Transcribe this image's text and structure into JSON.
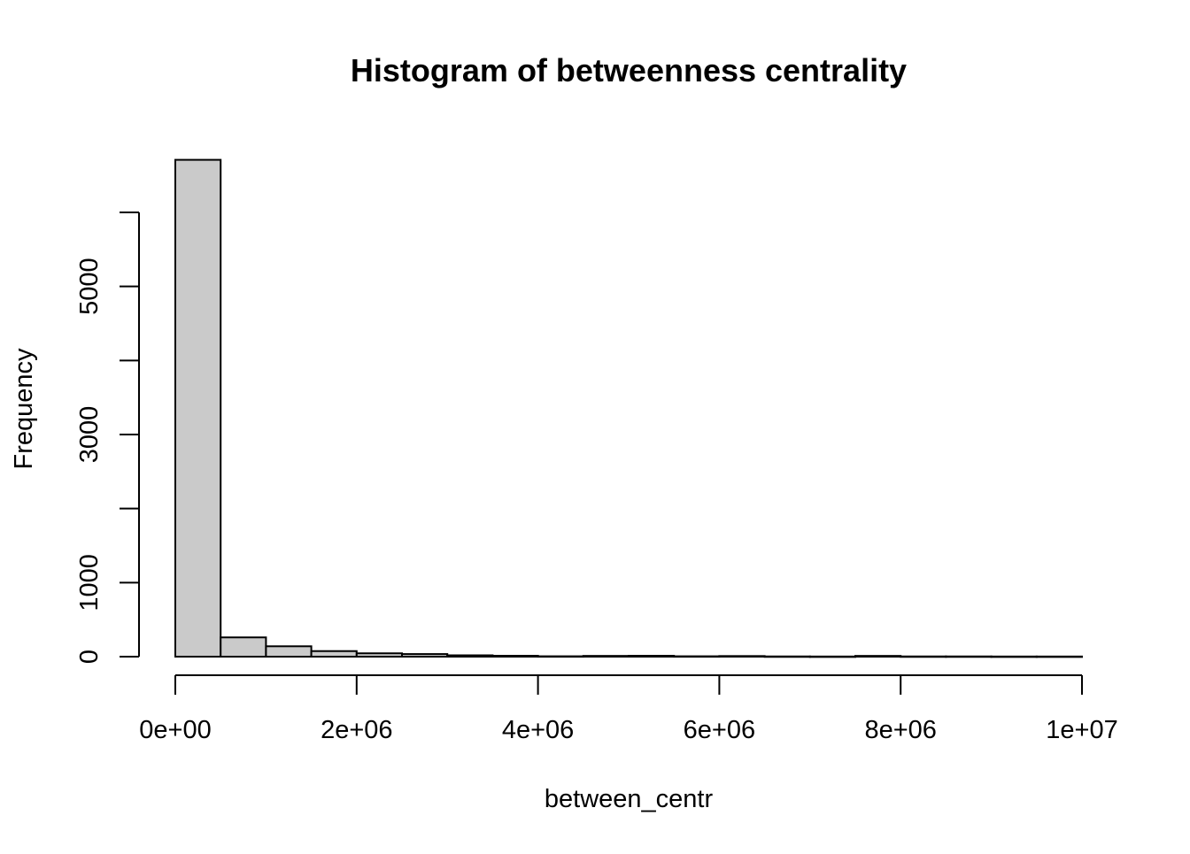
{
  "chart_data": {
    "type": "bar",
    "title": "Histogram of betweenness centrality",
    "xlabel": "between_centr",
    "ylabel": "Frequency",
    "bin_width": 500000,
    "bin_start": 0,
    "values": [
      6710,
      260,
      140,
      75,
      45,
      35,
      18,
      12,
      5,
      10,
      12,
      5,
      8,
      3,
      2,
      10,
      3,
      3,
      2,
      2
    ],
    "x_ticks": [
      0,
      2000000,
      4000000,
      6000000,
      8000000,
      10000000
    ],
    "x_tick_labels": [
      "0e+00",
      "2e+06",
      "4e+06",
      "6e+06",
      "8e+06",
      "1e+07"
    ],
    "y_ticks": [
      0,
      1000,
      2000,
      3000,
      4000,
      5000,
      6000
    ],
    "y_tick_labels": [
      "0",
      "1000",
      "",
      "3000",
      "",
      "5000",
      ""
    ],
    "xlim": [
      0,
      10000000
    ],
    "ylim": [
      0,
      6000
    ],
    "bar_fill": "#cacaca",
    "grid": false
  }
}
